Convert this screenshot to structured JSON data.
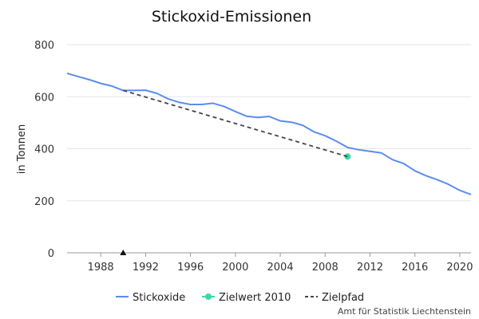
{
  "chart_data": {
    "type": "line",
    "title": "Stickoxid-Emissionen",
    "xlabel": "",
    "ylabel": "in Tonnen",
    "xlim": [
      1985,
      2021
    ],
    "ylim": [
      0,
      800
    ],
    "x_ticks": [
      1988,
      1992,
      1996,
      2000,
      2004,
      2008,
      2012,
      2016,
      2020
    ],
    "y_ticks": [
      0,
      200,
      400,
      600,
      800
    ],
    "grid": "horizontal",
    "legend_position": "bottom",
    "series": [
      {
        "name": "Stickoxide",
        "color": "#5b8def",
        "style": "solid",
        "x": [
          1985,
          1986,
          1987,
          1988,
          1989,
          1990,
          1991,
          1992,
          1993,
          1994,
          1995,
          1996,
          1997,
          1998,
          1999,
          2000,
          2001,
          2002,
          2003,
          2004,
          2005,
          2006,
          2007,
          2008,
          2009,
          2010,
          2011,
          2012,
          2013,
          2014,
          2015,
          2016,
          2017,
          2018,
          2019,
          2020,
          2021
        ],
        "y": [
          690,
          677,
          665,
          651,
          641,
          624,
          624,
          625,
          613,
          592,
          578,
          570,
          570,
          575,
          562,
          543,
          525,
          520,
          524,
          507,
          502,
          490,
          465,
          450,
          429,
          405,
          396,
          390,
          384,
          358,
          343,
          315,
          296,
          281,
          263,
          240,
          224
        ]
      },
      {
        "name": "Zielwert 2010",
        "color": "#3dd9a4",
        "style": "point",
        "x": [
          2010
        ],
        "y": [
          370
        ]
      },
      {
        "name": "Zielpfad",
        "color": "#444444",
        "style": "dashed",
        "x": [
          1990,
          2010
        ],
        "y": [
          624,
          370
        ]
      }
    ],
    "annotations": [
      {
        "marker": "triangle",
        "x": 1990,
        "y": 0,
        "color": "#111111"
      }
    ]
  },
  "source": "Amt für Statistik Liechtenstein"
}
